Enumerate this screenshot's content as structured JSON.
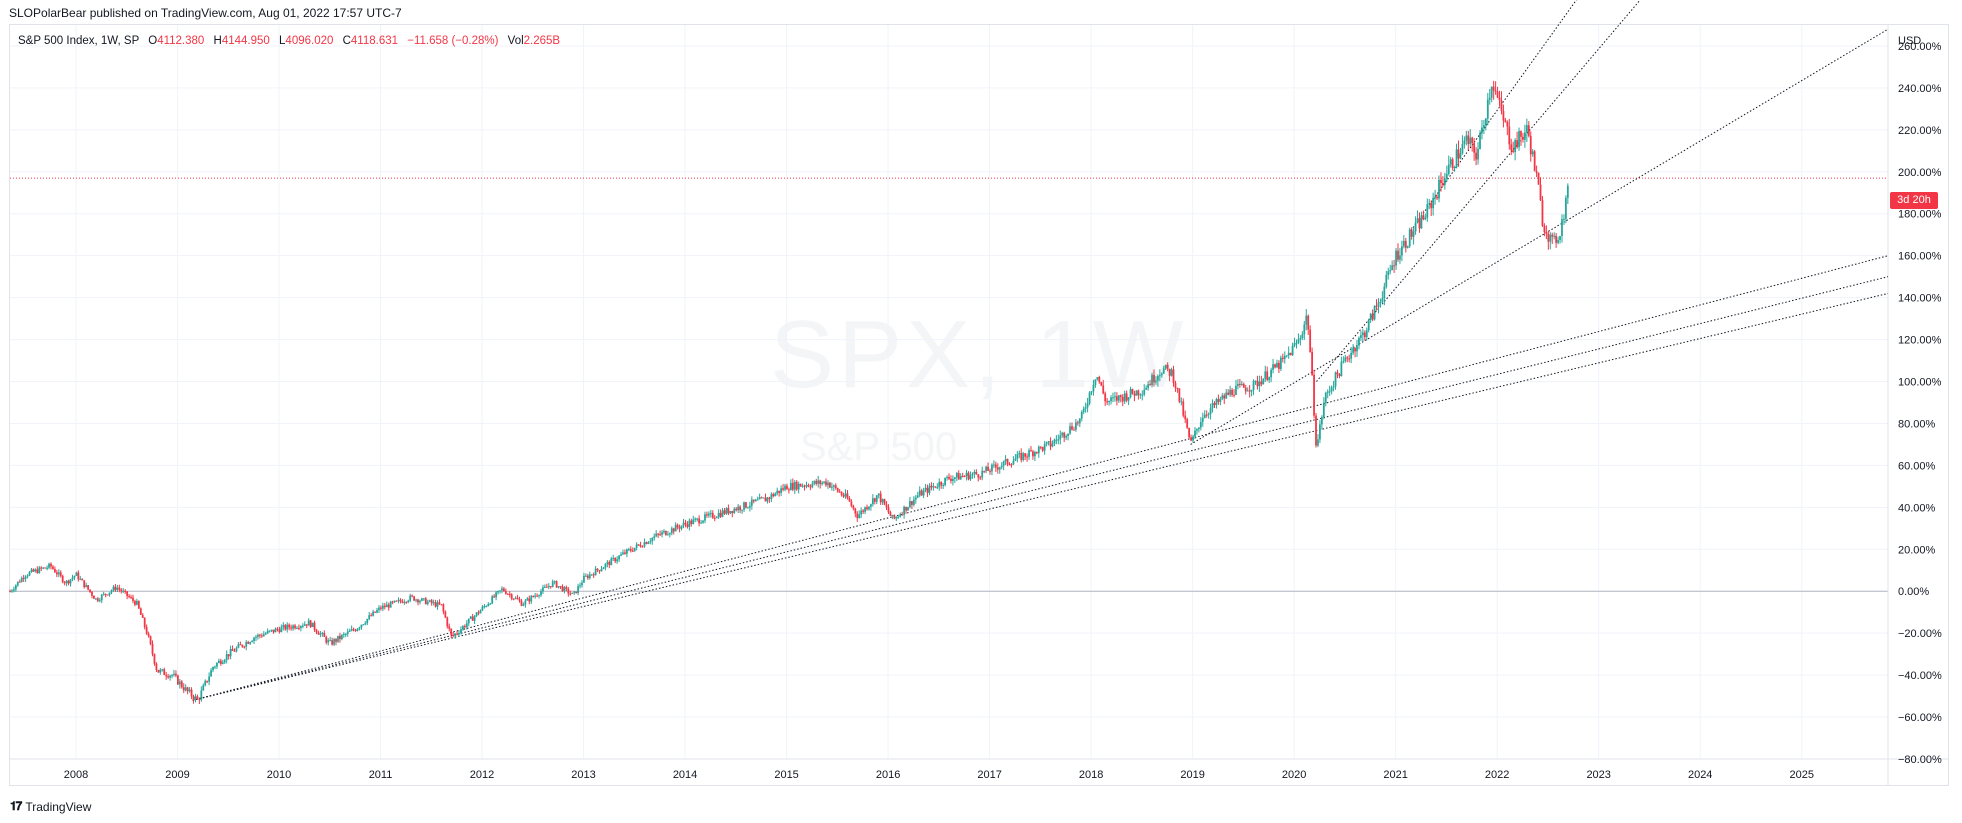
{
  "publish_line": "SLOPolarBear published on TradingView.com, Aug 01, 2022 17:57 UTC-7",
  "legend": {
    "symbol": "S&P 500 Index, 1W, SP",
    "open_label": "O",
    "open": "4112.380",
    "high_label": "H",
    "high": "4144.950",
    "low_label": "L",
    "low": "4096.020",
    "close_label": "C",
    "close": "4118.631",
    "change": "−11.658 (−0.28%)",
    "vol_label": "Vol",
    "vol": "2.265B"
  },
  "watermark": {
    "symbol": "SPX, 1W",
    "name": "S&P 500"
  },
  "countdown": "3d 20h",
  "footer": {
    "brand": "TradingView"
  },
  "colors": {
    "up": "#26a69a",
    "down": "#f23645",
    "grid": "#f0f3fa",
    "trend": "#131722",
    "zero_line": "#b2b5be"
  },
  "chart_data": {
    "type": "candlestick",
    "title": "S&P 500 Index, 1W, SP",
    "y_unit": "USD",
    "y_scale": "percent",
    "ylim": [
      -80,
      270
    ],
    "y_ticks": [
      "260.00%",
      "240.00%",
      "220.00%",
      "200.00%",
      "180.00%",
      "160.00%",
      "140.00%",
      "120.00%",
      "100.00%",
      "80.00%",
      "60.00%",
      "40.00%",
      "20.00%",
      "0.00%",
      "−20.00%",
      "−40.00%",
      "−60.00%",
      "−80.00%"
    ],
    "x_ticks": [
      "2008",
      "2009",
      "2010",
      "2011",
      "2012",
      "2013",
      "2014",
      "2015",
      "2016",
      "2017",
      "2018",
      "2019",
      "2020",
      "2021",
      "2022",
      "2023",
      "2024",
      "2025"
    ],
    "xlim": [
      2007.35,
      2025.85
    ],
    "last_value_pct": 197,
    "price_path": [
      [
        2007.35,
        0
      ],
      [
        2007.5,
        8
      ],
      [
        2007.75,
        12
      ],
      [
        2007.9,
        4
      ],
      [
        2008.0,
        8
      ],
      [
        2008.2,
        -4
      ],
      [
        2008.4,
        2
      ],
      [
        2008.6,
        -6
      ],
      [
        2008.7,
        -20
      ],
      [
        2008.8,
        -38
      ],
      [
        2008.95,
        -40
      ],
      [
        2009.1,
        -48
      ],
      [
        2009.2,
        -52
      ],
      [
        2009.35,
        -36
      ],
      [
        2009.5,
        -30
      ],
      [
        2009.75,
        -22
      ],
      [
        2010.0,
        -18
      ],
      [
        2010.3,
        -15
      ],
      [
        2010.5,
        -25
      ],
      [
        2010.75,
        -18
      ],
      [
        2011.0,
        -8
      ],
      [
        2011.3,
        -3
      ],
      [
        2011.6,
        -7
      ],
      [
        2011.7,
        -22
      ],
      [
        2011.9,
        -13
      ],
      [
        2012.2,
        1
      ],
      [
        2012.4,
        -6
      ],
      [
        2012.7,
        4
      ],
      [
        2012.9,
        -2
      ],
      [
        2013.0,
        6
      ],
      [
        2013.4,
        18
      ],
      [
        2013.7,
        26
      ],
      [
        2014.0,
        32
      ],
      [
        2014.4,
        38
      ],
      [
        2014.8,
        44
      ],
      [
        2015.0,
        50
      ],
      [
        2015.4,
        52
      ],
      [
        2015.6,
        44
      ],
      [
        2015.7,
        36
      ],
      [
        2015.9,
        46
      ],
      [
        2016.05,
        34
      ],
      [
        2016.3,
        46
      ],
      [
        2016.6,
        54
      ],
      [
        2016.9,
        56
      ],
      [
        2017.2,
        62
      ],
      [
        2017.6,
        70
      ],
      [
        2017.9,
        82
      ],
      [
        2018.05,
        104
      ],
      [
        2018.15,
        90
      ],
      [
        2018.5,
        96
      ],
      [
        2018.7,
        106
      ],
      [
        2018.8,
        104
      ],
      [
        2018.9,
        86
      ],
      [
        2018.98,
        70
      ],
      [
        2019.1,
        84
      ],
      [
        2019.4,
        96
      ],
      [
        2019.6,
        98
      ],
      [
        2019.9,
        110
      ],
      [
        2020.05,
        120
      ],
      [
        2020.13,
        132
      ],
      [
        2020.17,
        106
      ],
      [
        2020.22,
        68
      ],
      [
        2020.3,
        92
      ],
      [
        2020.5,
        110
      ],
      [
        2020.7,
        124
      ],
      [
        2020.85,
        140
      ],
      [
        2021.0,
        160
      ],
      [
        2021.3,
        180
      ],
      [
        2021.5,
        200
      ],
      [
        2021.7,
        215
      ],
      [
        2021.8,
        208
      ],
      [
        2021.95,
        244
      ],
      [
        2022.05,
        226
      ],
      [
        2022.15,
        212
      ],
      [
        2022.3,
        220
      ],
      [
        2022.4,
        194
      ],
      [
        2022.45,
        176
      ],
      [
        2022.55,
        165
      ],
      [
        2022.62,
        172
      ],
      [
        2022.68,
        186
      ],
      [
        2022.7,
        197
      ]
    ],
    "trend_lines": [
      {
        "from": [
          2009.15,
          -52
        ],
        "to": [
          2025.85,
          160
        ]
      },
      {
        "from": [
          2009.15,
          -52
        ],
        "to": [
          2025.85,
          150
        ]
      },
      {
        "from": [
          2009.15,
          -52
        ],
        "to": [
          2025.85,
          142
        ]
      },
      {
        "from": [
          2018.98,
          70
        ],
        "to": [
          2025.85,
          268
        ]
      },
      {
        "from": [
          2020.22,
          100
        ],
        "to": [
          2023.55,
          290
        ]
      },
      {
        "from": [
          2021.15,
          172
        ],
        "to": [
          2022.9,
          290
        ]
      }
    ]
  }
}
